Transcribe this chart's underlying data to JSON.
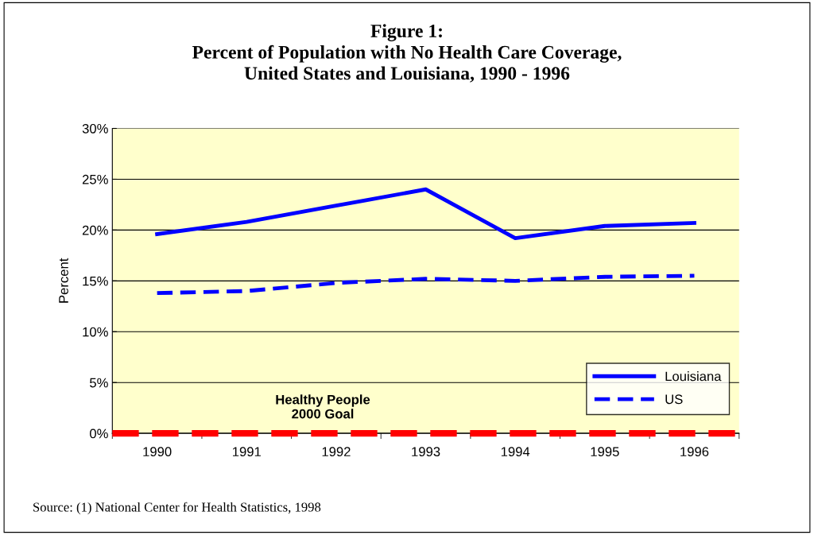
{
  "chart_data": {
    "type": "line",
    "title": "Figure 1:\nPercent of Population with No Health Care Coverage,\nUnited States and Louisiana, 1990 - 1996",
    "ylabel": "Percent",
    "categories": [
      "1990",
      "1991",
      "1992",
      "1993",
      "1994",
      "1995",
      "1996"
    ],
    "series": [
      {
        "name": "Louisiana",
        "color": "#0000ff",
        "line_style": "solid",
        "values": [
          19.6,
          20.8,
          22.4,
          24.0,
          19.2,
          20.4,
          20.7
        ]
      },
      {
        "name": "US",
        "color": "#0000ff",
        "line_style": "dashed",
        "values": [
          13.8,
          14.0,
          14.8,
          15.2,
          15.0,
          15.4,
          15.5
        ]
      }
    ],
    "ylim": [
      0,
      30
    ],
    "yticks": [
      {
        "value": 0,
        "label": "0%"
      },
      {
        "value": 5,
        "label": "5%"
      },
      {
        "value": 10,
        "label": "10%"
      },
      {
        "value": 15,
        "label": "15%"
      },
      {
        "value": 20,
        "label": "20%"
      },
      {
        "value": 25,
        "label": "25%"
      },
      {
        "value": 30,
        "label": "30%"
      }
    ],
    "grid": "y",
    "legend": "bottom right",
    "marker": "none",
    "ref_lines": [
      {
        "axis": "y",
        "value": 0,
        "label": "Healthy People\n2000 Goal",
        "color": "#ff0000",
        "line_style": "dashed"
      }
    ],
    "annotations": [
      "Source: (1) National Center for Health Statistics, 1998"
    ]
  }
}
